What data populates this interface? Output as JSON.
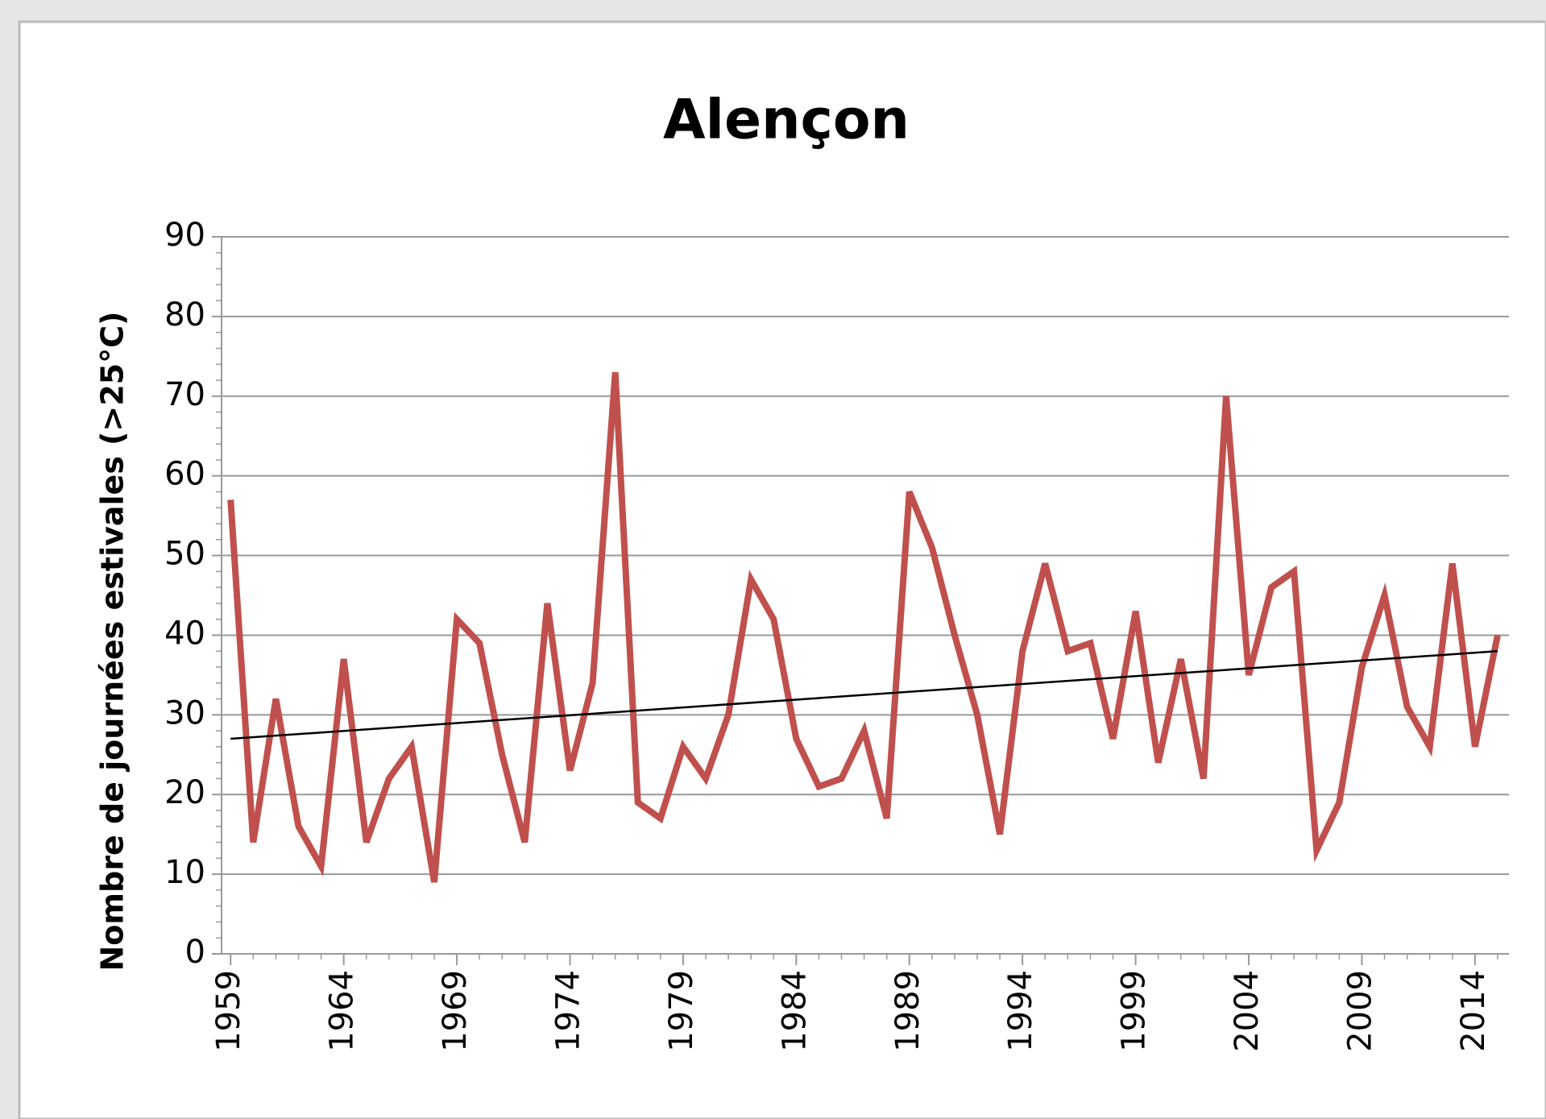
{
  "chart_data": {
    "type": "line",
    "title": "Alençon",
    "ylabel": "Nombre de journées estivales (>25°C)",
    "x": [
      1959,
      1960,
      1961,
      1962,
      1963,
      1964,
      1965,
      1966,
      1967,
      1968,
      1969,
      1970,
      1971,
      1972,
      1973,
      1974,
      1975,
      1976,
      1977,
      1978,
      1979,
      1980,
      1981,
      1982,
      1983,
      1984,
      1985,
      1986,
      1987,
      1988,
      1989,
      1990,
      1991,
      1992,
      1993,
      1994,
      1995,
      1996,
      1997,
      1998,
      1999,
      2000,
      2001,
      2002,
      2003,
      2004,
      2005,
      2006,
      2007,
      2008,
      2009,
      2010,
      2011,
      2012,
      2013,
      2014,
      2015
    ],
    "series": [
      {
        "color": "#c0504d",
        "values": [
          57,
          14,
          32,
          16,
          11,
          37,
          14,
          22,
          26,
          9,
          42,
          39,
          25,
          14,
          44,
          23,
          34,
          73,
          19,
          17,
          26,
          22,
          30,
          47,
          42,
          27,
          21,
          22,
          28,
          17,
          58,
          51,
          40,
          30,
          15,
          38,
          49,
          38,
          39,
          27,
          43,
          24,
          37,
          22,
          70,
          35,
          46,
          48,
          13,
          19,
          36,
          45,
          31,
          26,
          49,
          26,
          40
        ]
      }
    ],
    "trendline": {
      "x": [
        1959,
        2015
      ],
      "values": [
        27,
        38
      ],
      "color": "#000000"
    },
    "xlim": [
      1958.6,
      2015.5
    ],
    "xticks": [
      1959,
      1964,
      1969,
      1974,
      1979,
      1984,
      1989,
      1994,
      1999,
      2004,
      2009,
      2014
    ],
    "ylim": [
      0,
      90
    ],
    "yticks": [
      0,
      10,
      20,
      30,
      40,
      50,
      60,
      70,
      80,
      90
    ],
    "grid": true
  }
}
